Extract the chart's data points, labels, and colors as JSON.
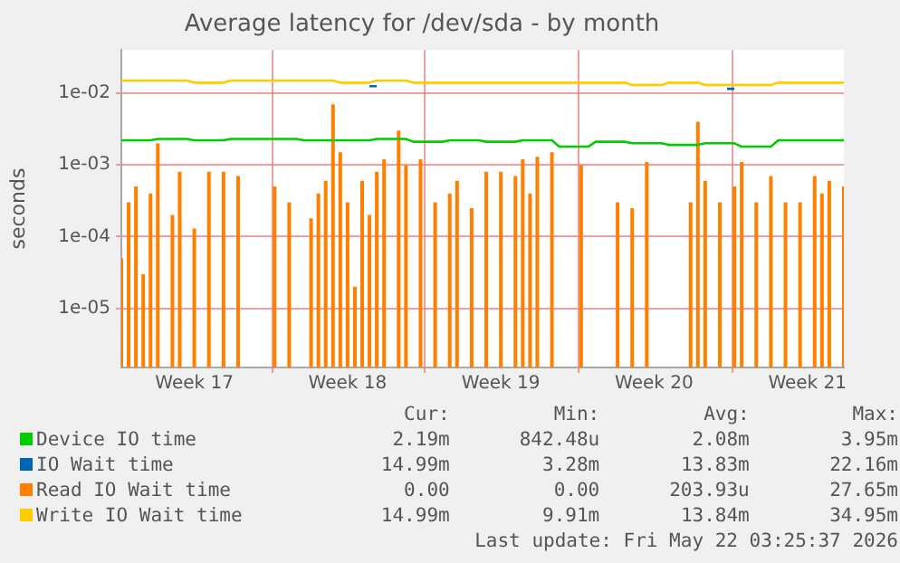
{
  "chart_data": {
    "type": "line",
    "title": "Average latency for /dev/sda - by month",
    "ylabel": "seconds",
    "log": "y",
    "grid": true,
    "legend": "bottom",
    "marker": "none",
    "line_style": "solid",
    "categories": [
      null,
      null,
      null,
      null,
      null,
      null,
      null,
      null,
      null,
      null,
      "Week 17",
      null,
      null,
      null,
      null,
      null,
      null,
      null,
      null,
      null,
      null,
      null,
      null,
      null,
      null,
      null,
      null,
      null,
      null,
      null,
      null,
      "Week 18",
      null,
      null,
      null,
      null,
      null,
      null,
      null,
      null,
      null,
      null,
      null,
      null,
      null,
      null,
      null,
      null,
      null,
      null,
      null,
      null,
      "Week 19",
      null,
      null,
      null,
      null,
      null,
      null,
      null,
      null,
      null,
      null,
      null,
      null,
      null,
      null,
      null,
      null,
      null,
      null,
      null,
      null,
      "Week 20",
      null,
      null,
      null,
      null,
      null,
      null,
      null,
      null,
      null,
      null,
      null,
      null,
      null,
      null,
      null,
      null,
      null,
      null,
      null,
      null,
      "Week 21",
      null,
      null,
      null,
      null,
      null
    ],
    "ylim": [
      1.5e-06,
      0.04
    ],
    "yticks": [
      {
        "value": 1e-05,
        "label": "1e-05"
      },
      {
        "value": 0.0001,
        "label": "1e-04"
      },
      {
        "value": 0.001,
        "label": "1e-03"
      },
      {
        "value": 0.01,
        "label": "1e-02"
      }
    ],
    "series": [
      {
        "name": "Device IO time",
        "color": "#00cc00",
        "values": [
          0.0022,
          0.0022,
          0.0022,
          0.0022,
          0.0022,
          0.0023,
          0.0023,
          0.0023,
          0.0023,
          0.0023,
          0.0022,
          0.0022,
          0.0022,
          0.0022,
          0.0022,
          0.0023,
          0.0023,
          0.0023,
          0.0023,
          0.0023,
          0.0023,
          0.0023,
          0.0023,
          0.0023,
          0.0023,
          0.0022,
          0.0022,
          0.0022,
          0.0022,
          0.0022,
          0.0022,
          0.0022,
          0.0022,
          0.0022,
          0.0022,
          0.0023,
          0.0023,
          0.0023,
          0.0023,
          0.0023,
          0.0021,
          0.0021,
          0.0021,
          0.0021,
          0.0021,
          0.0022,
          0.0022,
          0.0022,
          0.0022,
          0.0022,
          0.0021,
          0.0021,
          0.0021,
          0.0021,
          0.0021,
          0.0022,
          0.0022,
          0.0022,
          0.0022,
          0.0022,
          0.0018,
          0.0018,
          0.0018,
          0.0018,
          0.0018,
          0.0021,
          0.0021,
          0.0021,
          0.0021,
          0.0021,
          0.002,
          0.002,
          0.002,
          0.002,
          0.002,
          0.0019,
          0.0019,
          0.0019,
          0.0019,
          0.0019,
          0.002,
          0.002,
          0.002,
          0.002,
          0.002,
          0.0018,
          0.0018,
          0.0018,
          0.0018,
          0.0018,
          0.0022,
          0.0022,
          0.0022,
          0.0022,
          0.0022,
          0.0022,
          0.0022,
          0.0022,
          0.0022,
          0.0022
        ]
      },
      {
        "name": "IO Wait time",
        "color": "#0066b3",
        "values": [
          null,
          null,
          null,
          null,
          null,
          null,
          null,
          null,
          null,
          null,
          null,
          null,
          null,
          null,
          null,
          null,
          null,
          null,
          null,
          null,
          null,
          null,
          null,
          null,
          null,
          null,
          null,
          null,
          null,
          null,
          null,
          null,
          null,
          null,
          0.0125,
          0.0125,
          null,
          null,
          null,
          null,
          null,
          null,
          null,
          null,
          null,
          null,
          null,
          null,
          null,
          null,
          null,
          null,
          null,
          null,
          null,
          null,
          null,
          null,
          null,
          null,
          null,
          null,
          null,
          null,
          null,
          null,
          null,
          null,
          null,
          null,
          null,
          null,
          null,
          null,
          null,
          null,
          null,
          null,
          null,
          null,
          null,
          null,
          null,
          0.0115,
          0.0115,
          null,
          null,
          null,
          null,
          null,
          null,
          null,
          null,
          null,
          null,
          null,
          null,
          null,
          null,
          null
        ]
      },
      {
        "name": "Read IO Wait time",
        "color": "#ff8000",
        "type": "bar",
        "values": [
          5e-05,
          0.0003,
          0.0005,
          3e-05,
          0.0004,
          0.002,
          null,
          0.0002,
          0.0008,
          null,
          0.00013,
          null,
          0.0008,
          null,
          0.0008,
          null,
          0.0007,
          null,
          null,
          null,
          null,
          0.0005,
          null,
          0.0003,
          null,
          null,
          0.00018,
          0.0004,
          0.0006,
          0.007,
          0.0015,
          0.0003,
          2e-05,
          0.0006,
          0.0002,
          0.0008,
          0.0012,
          null,
          0.003,
          0.001,
          null,
          0.0012,
          null,
          0.0003,
          null,
          0.0004,
          0.0006,
          null,
          0.00025,
          null,
          0.0008,
          null,
          0.0008,
          null,
          0.0007,
          0.0012,
          0.0004,
          0.0013,
          null,
          0.0015,
          null,
          null,
          null,
          0.001,
          null,
          null,
          null,
          null,
          0.0003,
          null,
          0.00025,
          null,
          0.0011,
          null,
          null,
          null,
          null,
          null,
          0.0003,
          0.004,
          0.0006,
          null,
          0.0003,
          null,
          0.0005,
          0.0011,
          null,
          0.0003,
          null,
          0.0007,
          null,
          0.0003,
          null,
          0.0003,
          null,
          0.0007,
          0.0004,
          0.0006,
          null,
          0.0005
        ]
      },
      {
        "name": "Write IO Wait time",
        "color": "#ffcc00",
        "values": [
          0.015,
          0.015,
          0.015,
          0.015,
          0.015,
          0.015,
          0.015,
          0.015,
          0.015,
          0.015,
          0.014,
          0.014,
          0.014,
          0.014,
          0.014,
          0.015,
          0.015,
          0.015,
          0.015,
          0.015,
          0.015,
          0.015,
          0.015,
          0.015,
          0.015,
          0.015,
          0.015,
          0.015,
          0.015,
          0.015,
          0.014,
          0.014,
          0.014,
          0.014,
          0.014,
          0.015,
          0.015,
          0.015,
          0.015,
          0.015,
          0.014,
          0.014,
          0.014,
          0.014,
          0.014,
          0.014,
          0.014,
          0.014,
          0.014,
          0.014,
          0.014,
          0.014,
          0.014,
          0.014,
          0.014,
          0.014,
          0.014,
          0.014,
          0.014,
          0.014,
          0.014,
          0.014,
          0.014,
          0.014,
          0.014,
          0.014,
          0.014,
          0.014,
          0.014,
          0.014,
          0.013,
          0.013,
          0.013,
          0.013,
          0.013,
          0.014,
          0.014,
          0.014,
          0.014,
          0.014,
          0.013,
          0.013,
          0.013,
          0.013,
          0.013,
          0.013,
          0.013,
          0.013,
          0.013,
          0.013,
          0.014,
          0.014,
          0.014,
          0.014,
          0.014,
          0.014,
          0.014,
          0.014,
          0.014,
          0.014
        ]
      }
    ],
    "annotations": [
      "Cur:",
      "Min:",
      "Avg:",
      "Max:",
      "2.19m",
      "842.48u",
      "2.08m",
      "3.95m",
      "14.99m",
      "3.28m",
      "13.83m",
      "22.16m",
      "0.00",
      "0.00",
      "203.93u",
      "27.65m",
      "14.99m",
      "9.91m",
      "13.84m",
      "34.95m",
      "Last update: Fri May 22 03:25:37 2026"
    ]
  }
}
